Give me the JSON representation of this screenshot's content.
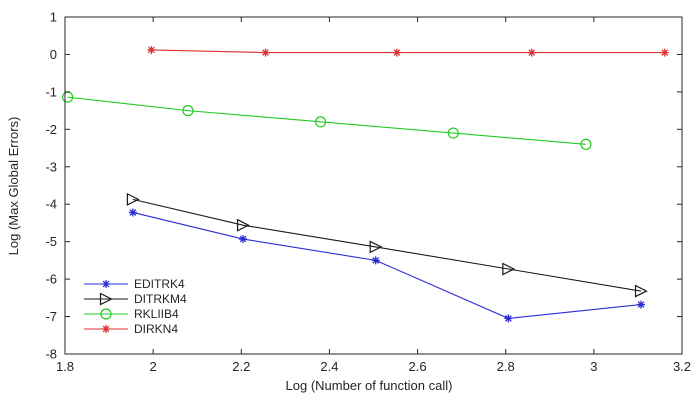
{
  "chart_data": {
    "type": "line",
    "title": "",
    "xlabel": "Log (Number of function call)",
    "ylabel": "Log (Max Global Errors)",
    "xlim": [
      1.8,
      3.2
    ],
    "ylim": [
      -8,
      1
    ],
    "xticks": [
      1.8,
      2,
      2.2,
      2.4,
      2.6,
      2.8,
      3,
      3.2
    ],
    "xtick_labels": [
      "1.8",
      "2",
      "2.2",
      "2.4",
      "2.6",
      "2.8",
      "3",
      "3.2"
    ],
    "yticks": [
      1,
      0,
      -1,
      -2,
      -3,
      -4,
      -5,
      -6,
      -7,
      -8
    ],
    "ytick_labels": [
      "1",
      "0",
      "-1",
      "-2",
      "-3",
      "-4",
      "-5",
      "-6",
      "-7",
      "-8"
    ],
    "grid": false,
    "legend_position": "bottom-left",
    "series": [
      {
        "name": "EDITRK4",
        "color": "#2b2bd6",
        "marker": "star",
        "x": [
          1.954,
          2.204,
          2.505,
          2.806,
          3.107
        ],
        "y": [
          -4.22,
          -4.93,
          -5.5,
          -7.05,
          -6.68
        ]
      },
      {
        "name": "DITRKM4",
        "color": "#1a1a1a",
        "marker": "triangle-right",
        "x": [
          1.954,
          2.204,
          2.505,
          2.806,
          3.107
        ],
        "y": [
          -3.87,
          -4.56,
          -5.14,
          -5.73,
          -6.32
        ]
      },
      {
        "name": "RKLIIB4",
        "color": "#22cc22",
        "marker": "circle",
        "x": [
          1.806,
          2.079,
          2.38,
          2.681,
          2.982
        ],
        "y": [
          -1.14,
          -1.5,
          -1.8,
          -2.1,
          -2.4
        ]
      },
      {
        "name": "DIRKN4",
        "color": "#e03030",
        "marker": "star",
        "x": [
          1.996,
          2.255,
          2.553,
          2.859,
          3.161
        ],
        "y": [
          0.12,
          0.05,
          0.05,
          0.05,
          0.05
        ]
      }
    ]
  }
}
